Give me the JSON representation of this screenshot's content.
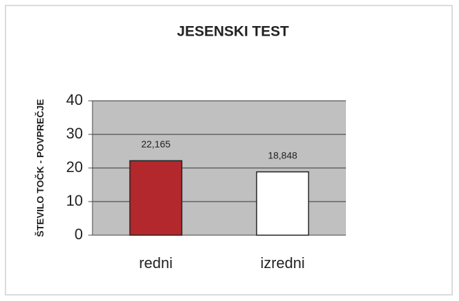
{
  "chart_data": {
    "type": "bar",
    "title": "JESENSKI TEST",
    "y_label": "ŠTEVILO TOČK - POVPREČJE",
    "categories": [
      "redni",
      "izredni"
    ],
    "values": [
      22.165,
      18.848
    ],
    "value_labels": [
      "22,165",
      "18,848"
    ],
    "colors": [
      "#b3282c",
      "#ffffff"
    ],
    "ylim": [
      0,
      40
    ],
    "yticks": [
      0,
      10,
      20,
      30,
      40
    ],
    "grid": true
  }
}
